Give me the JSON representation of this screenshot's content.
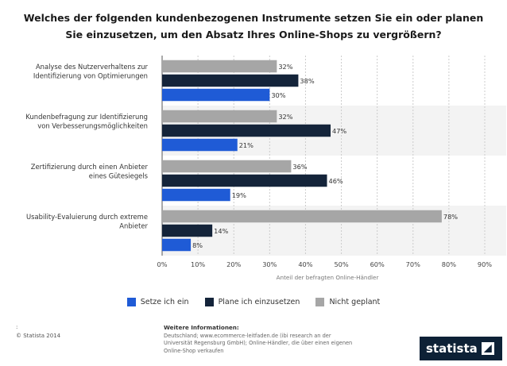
{
  "title": "Welches der folgenden kundenbezogenen Instrumente setzen Sie ein oder planen Sie einzusetzen, um den Absatz Ihres Online-Shops zu vergrößern?",
  "chart_data": {
    "type": "bar",
    "orientation": "horizontal",
    "categories": [
      "Analyse des Nutzerverhaltens zur Identifizierung von Optimierungen",
      "Kundenbefragung zur Identifizierung von Verbesserungsmöglichkeiten",
      "Zertifizierung durch einen Anbieter eines Gütesiegels",
      "Usability-Evaluierung durch extreme Anbieter"
    ],
    "category_lines": [
      [
        "Analyse des Nutzerverhaltens zur",
        "Identifizierung von Optimierungen"
      ],
      [
        "Kundenbefragung zur Identifizierung",
        "von Verbesserungsmöglichkeiten"
      ],
      [
        "Zertifizierung durch einen Anbieter",
        "eines Gütesiegels"
      ],
      [
        "Usability-Evaluierung durch extreme",
        "Anbieter"
      ]
    ],
    "series": [
      {
        "name": "Nicht geplant",
        "color": "#a6a6a6",
        "values": [
          32,
          32,
          36,
          78
        ]
      },
      {
        "name": "Plane ich einzusetzen",
        "color": "#14243a",
        "values": [
          38,
          47,
          46,
          14
        ]
      },
      {
        "name": "Setze ich ein",
        "color": "#1f5bd6",
        "values": [
          30,
          21,
          19,
          8
        ]
      }
    ],
    "value_suffix": "%",
    "xlim": [
      0,
      90
    ],
    "xticks": [
      0,
      10,
      20,
      30,
      40,
      50,
      60,
      70,
      80,
      90
    ],
    "xtick_labels": [
      "0%",
      "10%",
      "20%",
      "30%",
      "40%",
      "50%",
      "60%",
      "70%",
      "80%",
      "90%"
    ],
    "xlabel": "Anteil der befragten Online-Händler",
    "grid": true
  },
  "legend": [
    {
      "label": "Setze ich ein",
      "color": "#1f5bd6"
    },
    {
      "label": "Plane ich einzusetzen",
      "color": "#14243a"
    },
    {
      "label": "Nicht geplant",
      "color": "#a6a6a6"
    }
  ],
  "footer": {
    "mark": ":",
    "copyright": "© Statista 2014",
    "info_header": "Weitere Informationen:",
    "info_lines": [
      "Deutschland; www.ecommerce-leitfaden.de (ibi research an der",
      "Universität Regensburg GmbH); Online-Händler, die über einen eigenen",
      "Online-Shop verkaufen"
    ],
    "brand": "statista"
  }
}
